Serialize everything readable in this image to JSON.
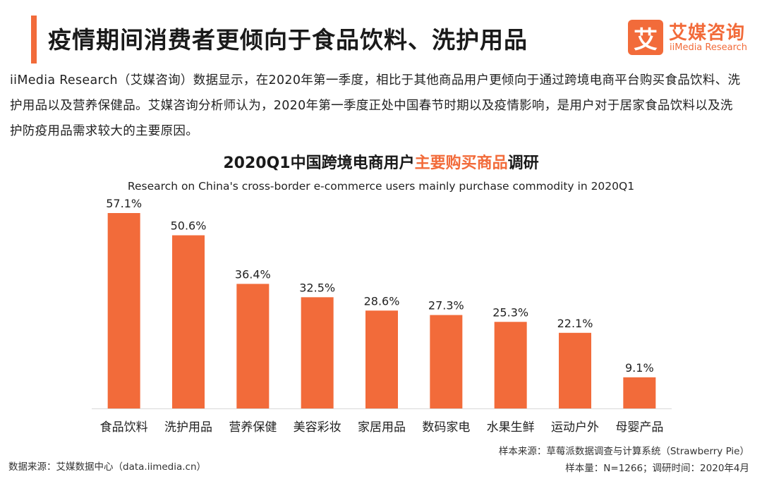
{
  "header": {
    "title": "疫情期间消费者更倾向于食品饮料、洗护用品",
    "accent_color": "#f26b3a"
  },
  "logo": {
    "mark": "艾",
    "cn_name": "艾媒咨询",
    "en_name": "iiMedia Research"
  },
  "intro": {
    "text": "iiMedia Research（艾媒咨询）数据显示，在2020年第一季度，相比于其他商品用户更倾向于通过跨境电商平台购买食品饮料、洗护用品以及营养保健品。艾媒咨询分析师认为，2020年第一季度正处中国春节时期以及疫情影响，是用户对于居家食品饮料以及洗护防疫用品需求较大的主要原因。"
  },
  "chart_data": {
    "type": "bar",
    "title_prefix": "2020Q1中国跨境电商用户",
    "title_highlight": "主要购买商品",
    "title_suffix": "调研",
    "subtitle": "Research on China's cross-border e-commerce users mainly purchase commodity in 2020Q1",
    "categories": [
      "食品饮料",
      "洗护用品",
      "营养保健",
      "美容彩妆",
      "家居用品",
      "数码家电",
      "水果生鲜",
      "运动户外",
      "母婴产品"
    ],
    "values": [
      57.1,
      50.6,
      36.4,
      32.5,
      28.6,
      27.3,
      25.3,
      22.1,
      9.1
    ],
    "value_labels": [
      "57.1%",
      "50.6%",
      "36.4%",
      "32.5%",
      "28.6%",
      "27.3%",
      "25.3%",
      "22.1%",
      "9.1%"
    ],
    "unit": "%",
    "bar_color": "#f26b3a",
    "ylim": [
      0,
      57.1
    ],
    "grid": false,
    "legend": "none"
  },
  "footer": {
    "source": "数据来源：艾媒数据中心（data.iimedia.cn）",
    "sample_source": "样本来源：草莓派数据调查与计算系统（Strawberry Pie）",
    "sample_info": "样本量：N=1266；调研时间：2020年4月"
  }
}
